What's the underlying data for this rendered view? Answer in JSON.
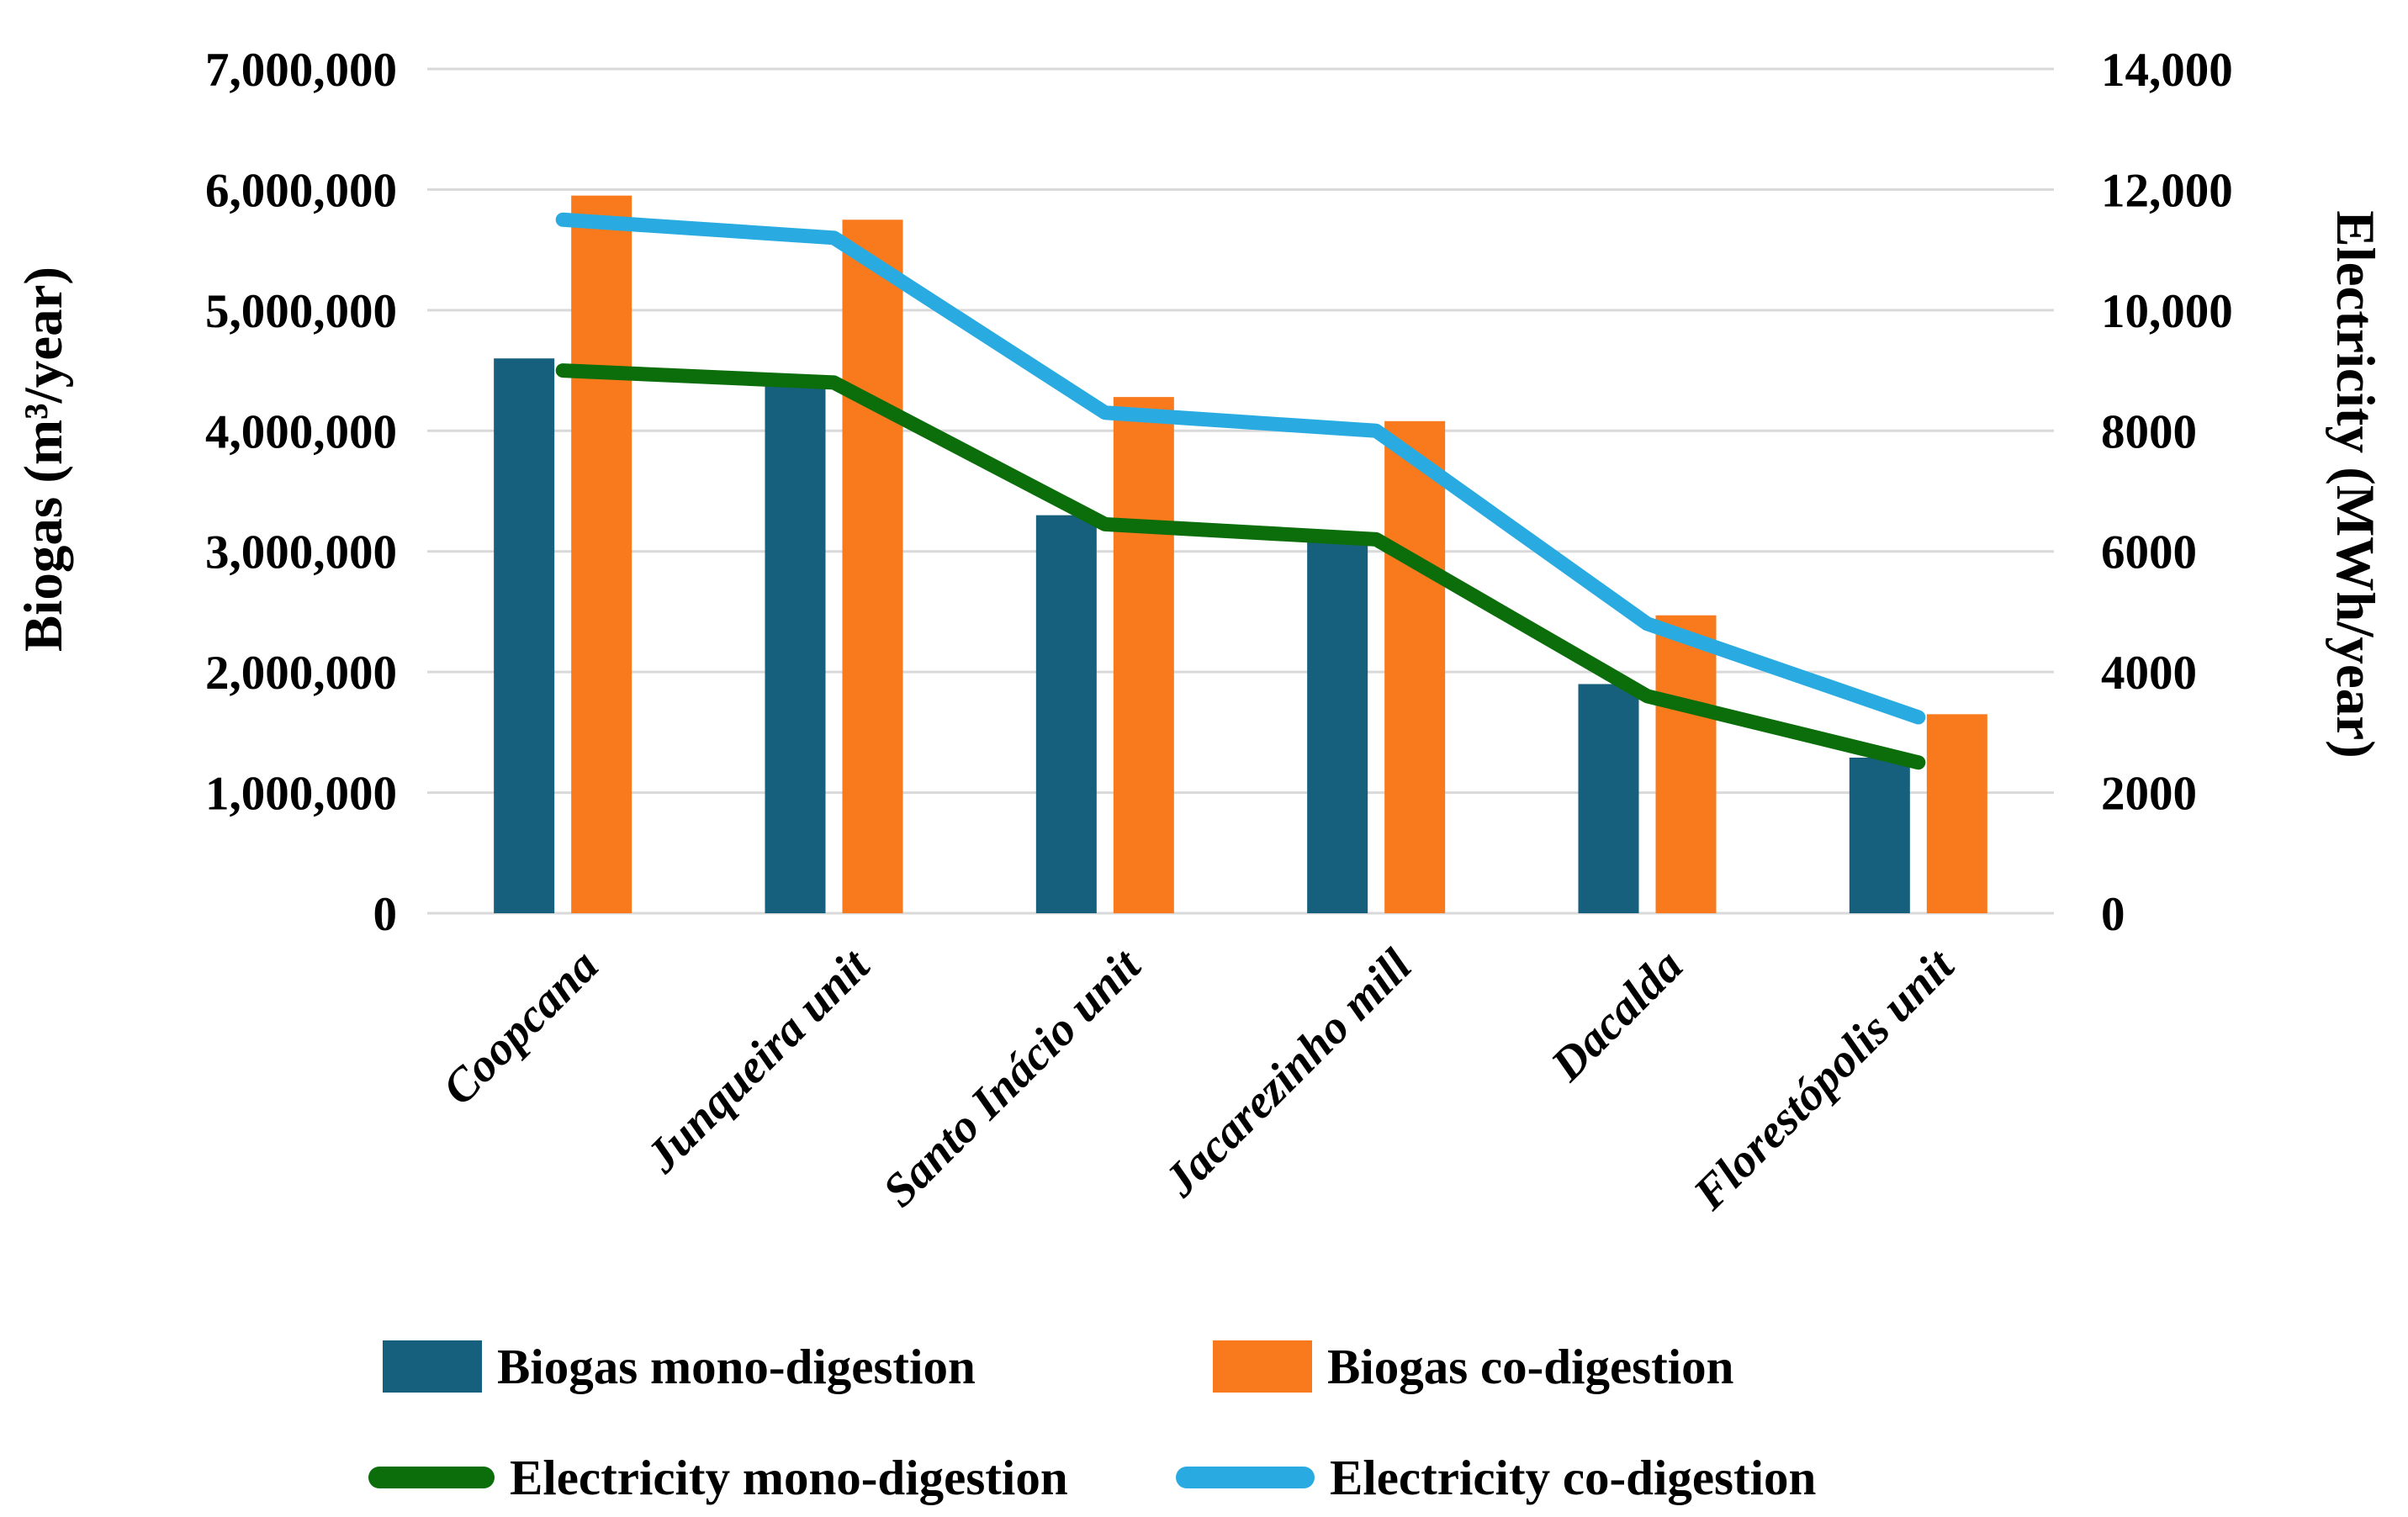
{
  "chart_data": {
    "type": "combo-bar-line",
    "categories": [
      "Coopcana",
      "Junqueira unit",
      "Santo Inácio unit",
      "Jacarezinho mill",
      "Dacalda",
      "Florestópolis unit"
    ],
    "bar_series": [
      {
        "name": "Biogas mono-digestion",
        "axis": "left",
        "color": "#16607E",
        "values": [
          4600000,
          4450000,
          3300000,
          3150000,
          1900000,
          1290000
        ]
      },
      {
        "name": "Biogas co-digestion",
        "axis": "left",
        "color": "#F87A1C",
        "values": [
          5950000,
          5750000,
          4280000,
          4080000,
          2470000,
          1650000
        ]
      }
    ],
    "line_series": [
      {
        "name": "Electricity mono-digestion",
        "axis": "right",
        "color": "#0B6E0B",
        "values": [
          9000,
          8800,
          6450,
          6200,
          3600,
          2500
        ]
      },
      {
        "name": "Electricity co-digestion",
        "axis": "right",
        "color": "#29ABE1",
        "values": [
          11500,
          11200,
          8300,
          8000,
          4800,
          3250
        ]
      }
    ],
    "left_axis": {
      "title": "Biogas (m³/year)",
      "min": 0,
      "max": 7000000,
      "tick_labels": [
        "7,000,000",
        "6,000,000",
        "5,000,000",
        "4,000,000",
        "3,000,000",
        "2,000,000",
        "1,000,000",
        "0"
      ]
    },
    "right_axis": {
      "title": "Electricity (MWh/year)",
      "min": 0,
      "max": 14000,
      "tick_labels": [
        "14,000",
        "12,000",
        "10,000",
        "8000",
        "6000",
        "4000",
        "2000",
        "0"
      ]
    },
    "grid": "on",
    "grid_color": "#D9D9D9",
    "legend_position": "bottom"
  }
}
